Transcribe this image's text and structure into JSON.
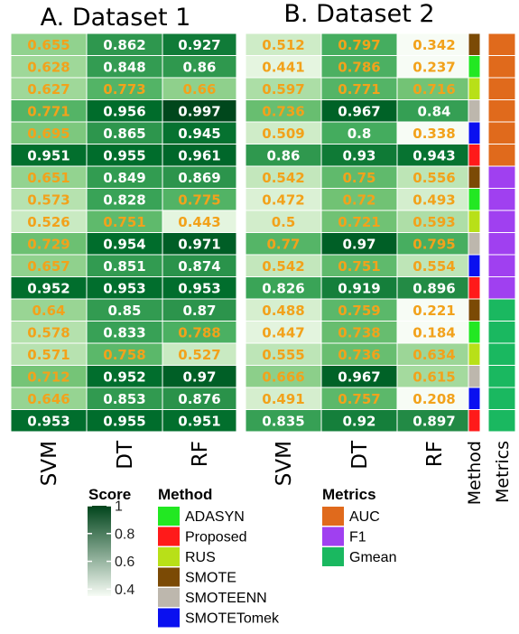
{
  "chart_data": {
    "type": "heatmap",
    "panels": [
      {
        "title": "A. Dataset 1",
        "columns": [
          "SVM",
          "DT",
          "RF"
        ],
        "values": [
          [
            0.655,
            0.862,
            0.927
          ],
          [
            0.628,
            0.848,
            0.86
          ],
          [
            0.627,
            0.773,
            0.66
          ],
          [
            0.771,
            0.956,
            0.997
          ],
          [
            0.695,
            0.865,
            0.945
          ],
          [
            0.951,
            0.955,
            0.961
          ],
          [
            0.651,
            0.849,
            0.869
          ],
          [
            0.573,
            0.828,
            0.775
          ],
          [
            0.526,
            0.751,
            0.443
          ],
          [
            0.729,
            0.954,
            0.971
          ],
          [
            0.657,
            0.851,
            0.874
          ],
          [
            0.952,
            0.953,
            0.953
          ],
          [
            0.64,
            0.85,
            0.87
          ],
          [
            0.578,
            0.833,
            0.788
          ],
          [
            0.571,
            0.758,
            0.527
          ],
          [
            0.712,
            0.952,
            0.97
          ],
          [
            0.646,
            0.853,
            0.876
          ],
          [
            0.953,
            0.955,
            0.951
          ]
        ]
      },
      {
        "title": "B. Dataset 2",
        "columns": [
          "SVM",
          "DT",
          "RF"
        ],
        "values": [
          [
            0.512,
            0.797,
            0.342
          ],
          [
            0.441,
            0.786,
            0.237
          ],
          [
            0.597,
            0.771,
            0.716
          ],
          [
            0.736,
            0.967,
            0.84
          ],
          [
            0.509,
            0.8,
            0.338
          ],
          [
            0.86,
            0.93,
            0.943
          ],
          [
            0.542,
            0.75,
            0.556
          ],
          [
            0.472,
            0.72,
            0.493
          ],
          [
            0.5,
            0.721,
            0.593
          ],
          [
            0.77,
            0.97,
            0.795
          ],
          [
            0.542,
            0.751,
            0.554
          ],
          [
            0.826,
            0.919,
            0.896
          ],
          [
            0.488,
            0.759,
            0.221
          ],
          [
            0.447,
            0.738,
            0.184
          ],
          [
            0.555,
            0.736,
            0.634
          ],
          [
            0.666,
            0.967,
            0.615
          ],
          [
            0.491,
            0.757,
            0.208
          ],
          [
            0.835,
            0.92,
            0.897
          ]
        ]
      }
    ],
    "row_method": [
      "SMOTE",
      "ADASYN",
      "RUS",
      "SMOTEENN",
      "SMOTETomek",
      "Proposed",
      "SMOTE",
      "ADASYN",
      "RUS",
      "SMOTEENN",
      "SMOTETomek",
      "Proposed",
      "SMOTE",
      "ADASYN",
      "RUS",
      "SMOTEENN",
      "SMOTETomek",
      "Proposed"
    ],
    "row_metrics": [
      "AUC",
      "AUC",
      "AUC",
      "AUC",
      "AUC",
      "AUC",
      "F1",
      "F1",
      "F1",
      "F1",
      "F1",
      "F1",
      "Gmean",
      "Gmean",
      "Gmean",
      "Gmean",
      "Gmean",
      "Gmean"
    ],
    "annotation_labels": {
      "method": "Method",
      "metrics": "Metrics"
    },
    "color_scale": {
      "title": "Score",
      "range": [
        0.35,
        1.0
      ],
      "ticks": [
        "1",
        "0.8",
        "0.6",
        "0.4"
      ],
      "tick_values": [
        1.0,
        0.8,
        0.6,
        0.4
      ],
      "low_color": "#f7fcf5",
      "high_color": "#00441b"
    },
    "text_colors": {
      "light_cell": "#f2a21b",
      "dark_cell": "#ffffff"
    },
    "legends": [
      {
        "title": "Method",
        "items": [
          {
            "label": "ADASYN",
            "color": "#22e822"
          },
          {
            "label": "Proposed",
            "color": "#ff1a1a"
          },
          {
            "label": "RUS",
            "color": "#b8e018"
          },
          {
            "label": "SMOTE",
            "color": "#7b4a05"
          },
          {
            "label": "SMOTEENN",
            "color": "#bdb7ad"
          },
          {
            "label": "SMOTETomek",
            "color": "#0a10f0"
          }
        ]
      },
      {
        "title": "Metrics",
        "items": [
          {
            "label": "AUC",
            "color": "#e06a1c"
          },
          {
            "label": "F1",
            "color": "#a040f0"
          },
          {
            "label": "Gmean",
            "color": "#1ab860"
          }
        ]
      }
    ]
  }
}
